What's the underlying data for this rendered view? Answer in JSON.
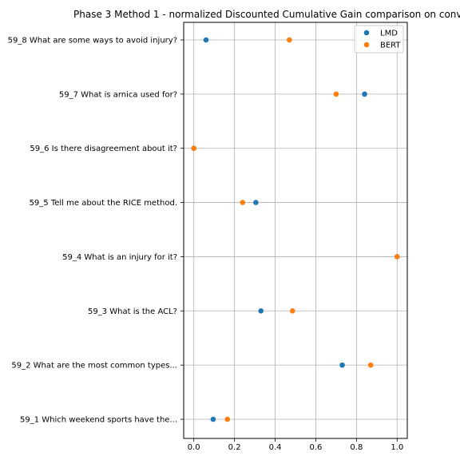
{
  "chart_data": {
    "type": "scatter",
    "title": "Phase 3 Method 1 - normalized Discounted Cumulative Gain comparison on conv",
    "xlabel": "",
    "ylabel": "",
    "xlim": [
      -0.05,
      1.05
    ],
    "x_ticks": [
      0.0,
      0.2,
      0.4,
      0.6,
      0.8,
      1.0
    ],
    "x_tick_labels": [
      "0.0",
      "0.2",
      "0.4",
      "0.6",
      "0.8",
      "1.0"
    ],
    "grid": true,
    "legend_position": "top-right",
    "categories": [
      "59_1 Which weekend sports have the...",
      "59_2 What are the most common types...",
      "59_3 What is the ACL?",
      "59_4 What is an injury for it?",
      "59_5 Tell me about the RICE method.",
      "59_6 Is there disagreement about it?",
      "59_7 What is arnica used for?",
      "59_8 What are some ways to avoid injury?"
    ],
    "series": [
      {
        "name": "LMD",
        "color": "#1f77b4",
        "values": [
          0.095,
          0.73,
          0.33,
          1.0,
          0.305,
          0.0,
          0.84,
          0.06
        ]
      },
      {
        "name": "BERT",
        "color": "#ff7f0e",
        "values": [
          0.165,
          0.87,
          0.485,
          1.0,
          0.24,
          0.0,
          0.7,
          0.47
        ]
      }
    ]
  }
}
